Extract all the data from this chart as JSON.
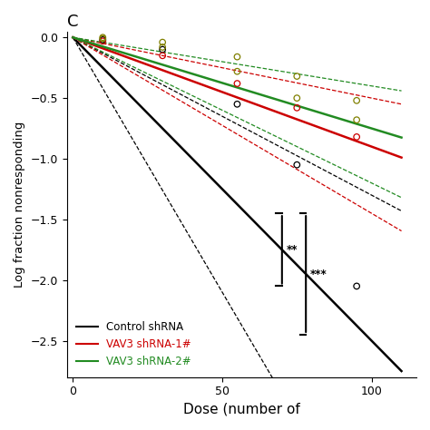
{
  "title": "C",
  "xlabel": "Dose (number of",
  "ylabel": "Log fraction nonresponding",
  "xlim": [
    -2,
    115
  ],
  "ylim": [
    -2.8,
    0.05
  ],
  "yticks": [
    0.0,
    -0.5,
    -1.0,
    -1.5,
    -2.0,
    -2.5
  ],
  "xticks": [
    0,
    50,
    100
  ],
  "control_color": "#000000",
  "red_color": "#cc0000",
  "green_color": "#228B22",
  "olive_color": "#808000",
  "ctrl_slope": -0.025,
  "ctrl_ci_up": -0.013,
  "ctrl_ci_lo": -0.042,
  "red_slope": -0.009,
  "red_ci_up": -0.005,
  "red_ci_lo": -0.0145,
  "grn_slope": -0.0075,
  "grn_ci_up": -0.004,
  "grn_ci_lo": -0.012,
  "ctrl_sx": [
    10,
    30,
    55,
    75,
    95
  ],
  "ctrl_sy": [
    -0.02,
    -0.1,
    -0.55,
    -1.05,
    -2.05
  ],
  "red_sx": [
    10,
    30,
    55,
    75,
    95
  ],
  "red_sy": [
    -0.03,
    -0.15,
    -0.38,
    -0.58,
    -0.82
  ],
  "grn_sx": [
    10,
    30,
    55,
    75,
    95
  ],
  "grn_sy": [
    -0.01,
    -0.08,
    -0.28,
    -0.5,
    -0.68
  ],
  "olive_sx": [
    10,
    30,
    55,
    75,
    95
  ],
  "olive_sy": [
    0.0,
    -0.04,
    -0.16,
    -0.32,
    -0.52
  ],
  "legend_labels": [
    "Control shRNA",
    "VAV3 shRNA-1#",
    "VAV3 shRNA-2#"
  ],
  "sig1": "**",
  "sig2": "***"
}
